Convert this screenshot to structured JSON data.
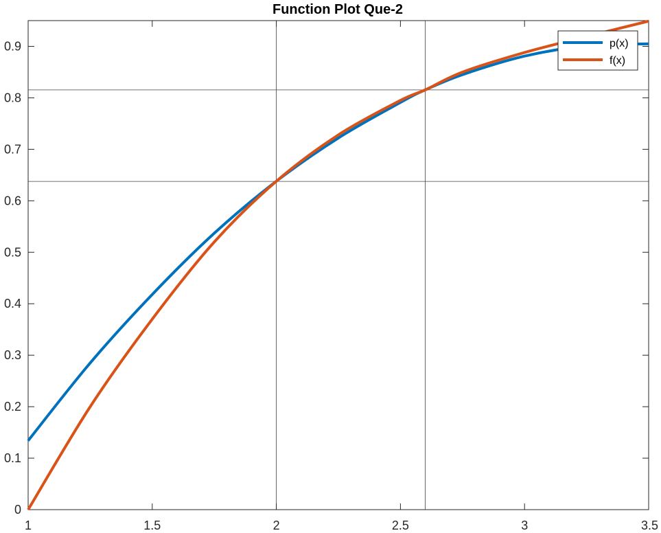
{
  "chart_data": {
    "type": "line",
    "title": "Function Plot Que-2",
    "xlabel": "",
    "ylabel": "",
    "xlim": [
      1,
      3.5
    ],
    "ylim": [
      0,
      0.95
    ],
    "xticks": [
      1,
      1.5,
      2,
      2.5,
      3,
      3.5
    ],
    "yticks": [
      0,
      0.1,
      0.2,
      0.3,
      0.4,
      0.5,
      0.6,
      0.7,
      0.8,
      0.9
    ],
    "xtick_labels": [
      "1",
      "1.5",
      "2",
      "2.5",
      "3",
      "3.5"
    ],
    "ytick_labels": [
      "0",
      "0.1",
      "0.2",
      "0.3",
      "0.4",
      "0.5",
      "0.6",
      "0.7",
      "0.8",
      "0.9"
    ],
    "reference_lines": {
      "vertical_x": [
        2,
        2.6
      ],
      "horizontal_y": [
        0.6376,
        0.8154
      ]
    },
    "legend": {
      "placement": "top-right"
    },
    "series": [
      {
        "name": "p(x)",
        "color": "#0072BD",
        "x": [
          1.0,
          1.25,
          1.5,
          1.75,
          2.0,
          2.25,
          2.5,
          2.6,
          2.75,
          3.0,
          3.25,
          3.5
        ],
        "y": [
          0.134,
          0.285,
          0.418,
          0.537,
          0.638,
          0.722,
          0.791,
          0.8154,
          0.845,
          0.881,
          0.901,
          0.905
        ]
      },
      {
        "name": "f(x)",
        "color": "#D95319",
        "x": [
          1.0,
          1.25,
          1.5,
          1.75,
          2.0,
          2.25,
          2.5,
          2.6,
          2.75,
          3.0,
          3.25,
          3.5
        ],
        "y": [
          0.0,
          0.2,
          0.37,
          0.52,
          0.638,
          0.728,
          0.795,
          0.8154,
          0.85,
          0.888,
          0.919,
          0.949
        ]
      }
    ]
  }
}
